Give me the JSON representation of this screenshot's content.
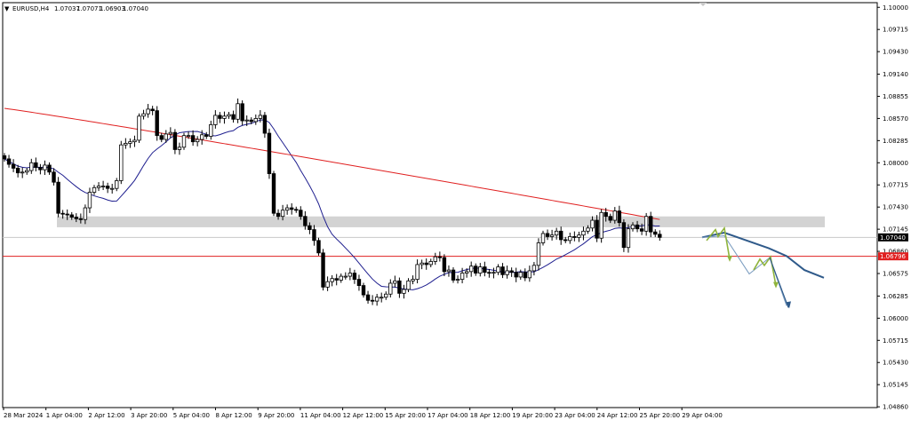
{
  "header": {
    "symbol_tf": "EURUSD,H4",
    "open": "1.07037",
    "high": "1.07071",
    "low": "1.06903",
    "close": "1.07040"
  },
  "colors": {
    "background": "#ffffff",
    "candle": "#000000",
    "ma_fast": "#1f1f8f",
    "ma_slow": "#e02020",
    "resistance_zone": "#d3d3d3",
    "support_line": "#e02020",
    "forecast_green": "#8fb43c",
    "forecast_blue": "#2f5a8a",
    "forecast_thin": "#7a9cc0"
  },
  "price_tags": {
    "current": "1.07040",
    "support": "1.06796"
  },
  "chart_data": {
    "type": "candlestick",
    "symbol": "EURUSD",
    "timeframe": "H4",
    "ylim": [
      1.0485,
      1.1006
    ],
    "y_ticks": [
      "1.10000",
      "1.09715",
      "1.09430",
      "1.09140",
      "1.08855",
      "1.08570",
      "1.08285",
      "1.08000",
      "1.07715",
      "1.07430",
      "1.07145",
      "1.06860",
      "1.06575",
      "1.06285",
      "1.06000",
      "1.05715",
      "1.05430",
      "1.05145",
      "1.04860"
    ],
    "x_ticks": [
      "28 Mar 2024",
      "1 Apr 04:00",
      "2 Apr 12:00",
      "3 Apr 20:00",
      "5 Apr 04:00",
      "8 Apr 12:00",
      "9 Apr 20:00",
      "11 Apr 04:00",
      "12 Apr 12:00",
      "15 Apr 20:00",
      "17 Apr 04:00",
      "18 Apr 12:00",
      "19 Apr 20:00",
      "23 Apr 04:00",
      "24 Apr 12:00",
      "25 Apr 20:00",
      "29 Apr 04:00"
    ],
    "candles_close": [
      1.0805,
      1.0798,
      1.0793,
      1.0787,
      1.0788,
      1.079,
      1.08,
      1.0794,
      1.0791,
      1.0797,
      1.0788,
      1.0775,
      1.0735,
      1.0734,
      1.0733,
      1.073,
      1.0728,
      1.0727,
      1.0742,
      1.0762,
      1.0768,
      1.077,
      1.077,
      1.0767,
      1.0767,
      1.0777,
      1.0823,
      1.0825,
      1.0827,
      1.0829,
      1.086,
      1.0863,
      1.0869,
      1.0867,
      1.0835,
      1.083,
      1.0837,
      1.0839,
      1.0817,
      1.082,
      1.0835,
      1.0835,
      1.0827,
      1.083,
      1.0836,
      1.0834,
      1.0849,
      1.0861,
      1.0857,
      1.086,
      1.0862,
      1.0856,
      1.0876,
      1.0854,
      1.0855,
      1.0853,
      1.0857,
      1.0861,
      1.0838,
      1.0786,
      1.0735,
      1.0731,
      1.0739,
      1.0742,
      1.074,
      1.0739,
      1.0731,
      1.0719,
      1.0714,
      1.07,
      1.0684,
      1.064,
      1.0647,
      1.0651,
      1.0649,
      1.0654,
      1.0654,
      1.0658,
      1.065,
      1.0642,
      1.063,
      1.0623,
      1.0622,
      1.0627,
      1.0627,
      1.0631,
      1.0645,
      1.0648,
      1.0632,
      1.0637,
      1.0648,
      1.065,
      1.0669,
      1.0671,
      1.0669,
      1.0673,
      1.0679,
      1.0678,
      1.066,
      1.0662,
      1.0649,
      1.065,
      1.0658,
      1.066,
      1.0667,
      1.0658,
      1.0666,
      1.0659,
      1.0658,
      1.0659,
      1.0666,
      1.0656,
      1.0661,
      1.0659,
      1.0653,
      1.0659,
      1.0652,
      1.0661,
      1.0668,
      1.0697,
      1.0709,
      1.0705,
      1.0707,
      1.0712,
      1.0701,
      1.07,
      1.0705,
      1.0704,
      1.0707,
      1.0712,
      1.0716,
      1.0726,
      1.0703,
      1.0736,
      1.0731,
      1.0726,
      1.0738,
      1.0723,
      1.0691,
      1.0715,
      1.072,
      1.0715,
      1.0712,
      1.0731,
      1.0711,
      1.0708,
      1.0704
    ],
    "ma_fast_label": "",
    "ma_slow_label": "",
    "resistance_zone": [
      1.0717,
      1.0731
    ],
    "support_level": 1.06796,
    "current_price": 1.0704,
    "forecast_path_blue": [
      1.0704,
      1.071,
      1.07,
      1.069,
      1.068,
      1.0662,
      1.0652
    ],
    "forecast_target": 1.0616,
    "grid": false,
    "legend": "none"
  }
}
